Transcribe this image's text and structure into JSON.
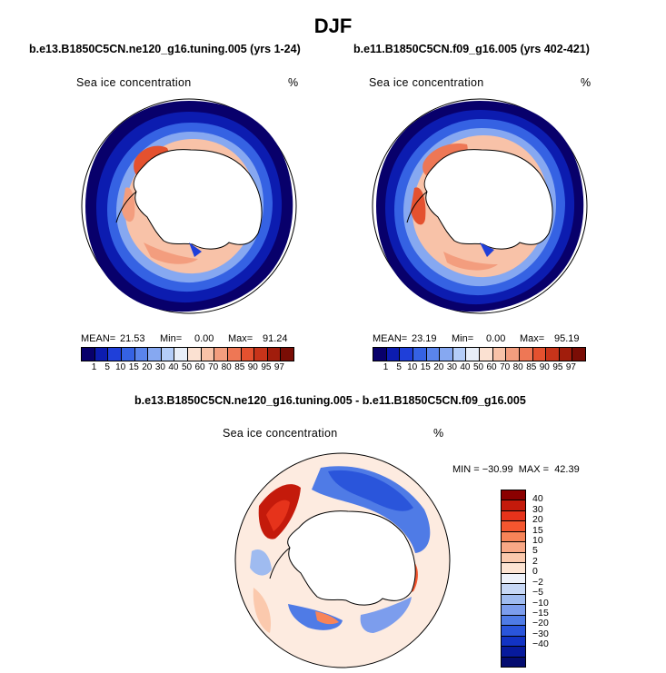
{
  "title": "DJF",
  "panels": [
    {
      "case_title": "b.e13.B1850C5CN.ne120_g16.tuning.005 (yrs 1-24)",
      "field_name": "Sea ice concentration",
      "units": "%",
      "mean_label": "MEAN=",
      "mean": "21.53",
      "min_label": "Min=",
      "min": "0.00",
      "max_label": "Max=",
      "max": "91.24"
    },
    {
      "case_title": "b.e11.B1850C5CN.f09_g16.005 (yrs 402-421)",
      "field_name": "Sea ice concentration",
      "units": "%",
      "mean_label": "MEAN=",
      "mean": "23.19",
      "min_label": "Min=",
      "min": "0.00",
      "max_label": "Max=",
      "max": "95.19"
    }
  ],
  "colorbar": {
    "labels": [
      "1",
      "5",
      "10",
      "15",
      "20",
      "30",
      "40",
      "50",
      "60",
      "70",
      "80",
      "85",
      "90",
      "95",
      "97"
    ],
    "colors": [
      "#08006b",
      "#0c1cb0",
      "#1f3fd9",
      "#3562e3",
      "#5a84eb",
      "#86a8f1",
      "#b4cdf8",
      "#e8eef8",
      "#fbe1d2",
      "#f8c2a8",
      "#f39d7e",
      "#ee7755",
      "#e4512f",
      "#c8341a",
      "#a11d0c",
      "#7a0d05"
    ]
  },
  "difference": {
    "title": "b.e13.B1850C5CN.ne120_g16.tuning.005 - b.e11.B1850C5CN.f09_g16.005",
    "field_name": "Sea ice concentration",
    "units": "%",
    "minmax": "MIN = −30.99  MAX =  42.39",
    "colorbar_labels": [
      "40",
      "30",
      "20",
      "15",
      "10",
      "5",
      "2",
      "0",
      "−2",
      "−5",
      "−10",
      "−15",
      "−20",
      "−30",
      "−40"
    ],
    "colorbar_colors": [
      "#8b0000",
      "#c41a0b",
      "#e6331b",
      "#f5562f",
      "#f78458",
      "#f9a886",
      "#fbc9ad",
      "#fde4d3",
      "#eef2fa",
      "#c7d8f6",
      "#9fbbf0",
      "#7c9ded",
      "#4f7be6",
      "#2a55db",
      "#1233c4",
      "#071a9c",
      "#040c70"
    ]
  }
}
